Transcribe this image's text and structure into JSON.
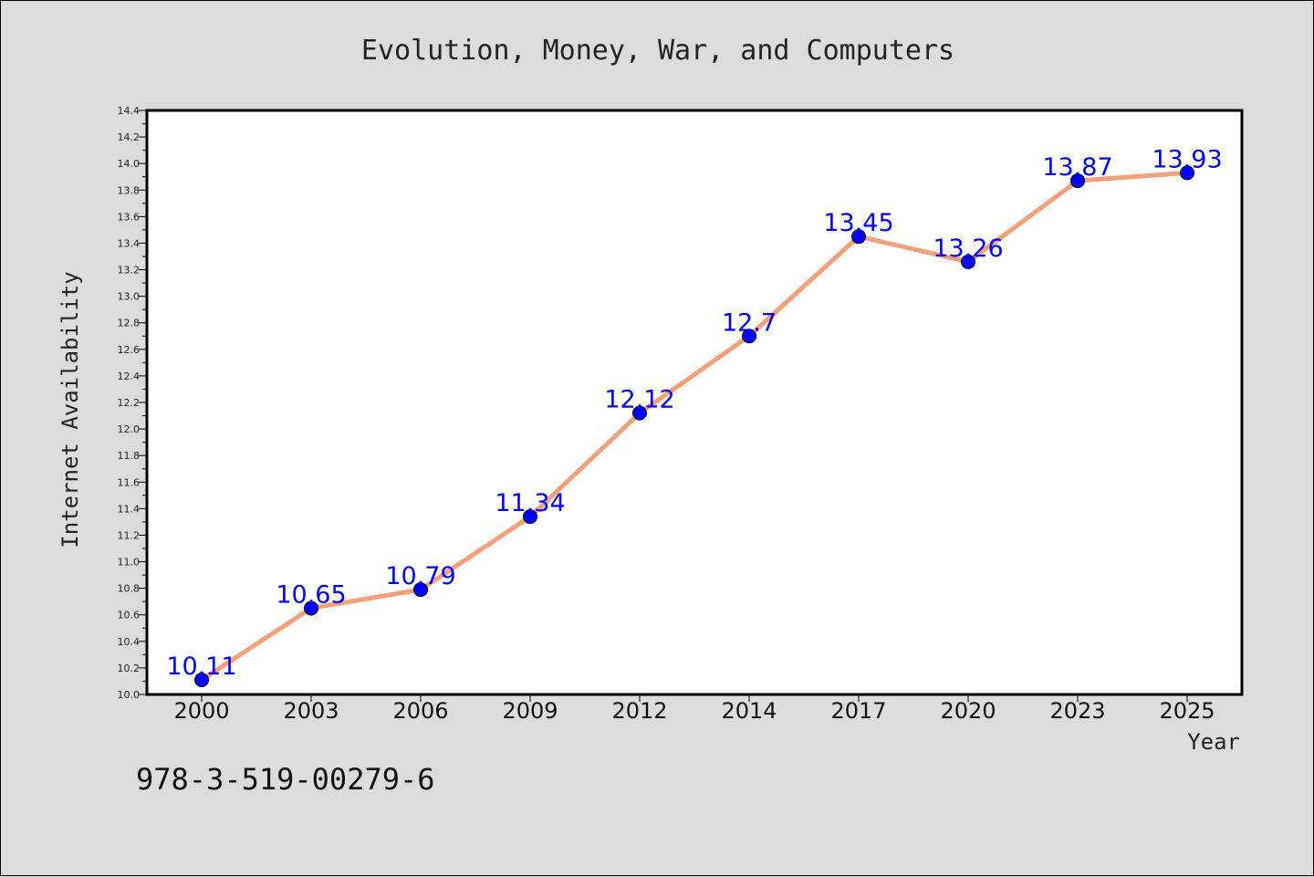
{
  "chart_data": {
    "type": "line",
    "title": "Evolution, Money, War, and Computers",
    "xlabel": "Year",
    "ylabel": "Internet Availability",
    "categories": [
      "2000",
      "2003",
      "2006",
      "2009",
      "2012",
      "2014",
      "2017",
      "2020",
      "2023",
      "2025"
    ],
    "series": [
      {
        "values": [
          10.11,
          10.65,
          10.79,
          11.34,
          12.12,
          12.7,
          13.45,
          13.26,
          13.87,
          13.93
        ],
        "labels": [
          "10.11",
          "10.65",
          "10.79",
          "11.34",
          "12.12",
          "12.7",
          "13.45",
          "13.26",
          "13.87",
          "13.93"
        ],
        "line_color": "#f4a07a",
        "marker_color": "#0000ff"
      }
    ],
    "ylim": [
      10.0,
      14.4
    ],
    "yticks": [
      "10.0",
      "10.2",
      "10.4",
      "10.6",
      "10.8",
      "11.0",
      "11.2",
      "11.4",
      "11.6",
      "11.8",
      "12.0",
      "12.2",
      "12.4",
      "12.6",
      "12.8",
      "13.0",
      "13.2",
      "13.4",
      "13.6",
      "13.8",
      "14.0",
      "14.2",
      "14.4"
    ],
    "grid": false,
    "legend": "none"
  },
  "annotation": {
    "isbn": "978-3-519-00279-6"
  }
}
